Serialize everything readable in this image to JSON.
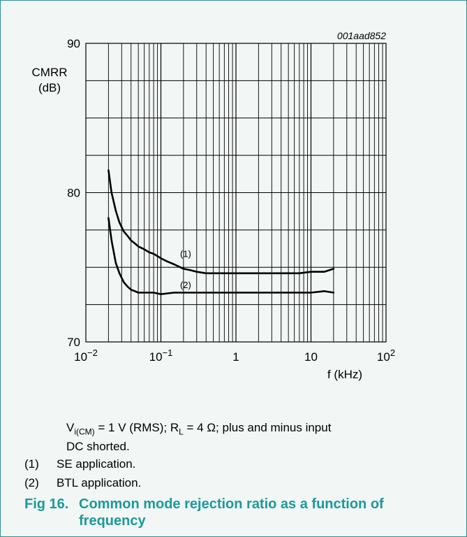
{
  "figure": {
    "id_label": "001aad852",
    "fig_number": "Fig 16.",
    "caption_line1": "Common mode rejection ratio as a function of",
    "caption_line2": "frequency"
  },
  "conditions": {
    "v_main": "V",
    "v_sub": "i(CM)",
    "v_rest": " = 1 V (RMS); R",
    "r_sub": "L",
    "r_rest": " = 4 Ω; plus and minus input",
    "line2": "DC shorted."
  },
  "legend_items": [
    {
      "num": "(1)",
      "text": "SE application."
    },
    {
      "num": "(2)",
      "text": "BTL application."
    }
  ],
  "colors": {
    "frame_border": "#2f8f8f",
    "frame_bg": "#f2f6f5",
    "caption": "#1b9a9a",
    "curve": "#000000",
    "grid": "#000000"
  },
  "chart_data": {
    "type": "line",
    "x_scale": "log",
    "xlim": [
      0.01,
      100
    ],
    "ylim": [
      70,
      90
    ],
    "ylabel_line1": "CMRR",
    "ylabel_line2": "(dB)",
    "xlabel": "f (kHz)",
    "y_ticks": [
      {
        "v": 70,
        "label": "70"
      },
      {
        "v": 80,
        "label": "80"
      },
      {
        "v": 90,
        "label": "90"
      }
    ],
    "x_ticks": [
      {
        "v": 0.01,
        "base": "10",
        "exp": "−2"
      },
      {
        "v": 0.1,
        "base": "10",
        "exp": "−1"
      },
      {
        "v": 1,
        "base": "1",
        "exp": ""
      },
      {
        "v": 10,
        "base": "10",
        "exp": ""
      },
      {
        "v": 100,
        "base": "10",
        "exp": "2"
      }
    ],
    "series": [
      {
        "name": "(1)",
        "x": [
          0.02,
          0.022,
          0.025,
          0.028,
          0.032,
          0.036,
          0.04,
          0.045,
          0.05,
          0.06,
          0.07,
          0.08,
          0.1,
          0.12,
          0.15,
          0.2,
          0.25,
          0.3,
          0.4,
          0.5,
          0.7,
          1,
          1.5,
          2,
          3,
          5,
          7,
          10,
          15,
          20
        ],
        "y": [
          81.5,
          80.0,
          78.8,
          78.0,
          77.4,
          77.1,
          76.8,
          76.6,
          76.4,
          76.2,
          76.0,
          75.9,
          75.6,
          75.4,
          75.2,
          74.9,
          74.8,
          74.7,
          74.6,
          74.6,
          74.6,
          74.6,
          74.6,
          74.6,
          74.6,
          74.6,
          74.6,
          74.7,
          74.7,
          74.9
        ]
      },
      {
        "name": "(2)",
        "x": [
          0.02,
          0.022,
          0.025,
          0.028,
          0.032,
          0.036,
          0.04,
          0.045,
          0.05,
          0.06,
          0.07,
          0.08,
          0.1,
          0.15,
          0.2,
          0.3,
          0.5,
          0.7,
          1,
          2,
          3,
          5,
          10,
          15,
          20
        ],
        "y": [
          78.3,
          76.8,
          75.3,
          74.6,
          74.0,
          73.7,
          73.5,
          73.4,
          73.3,
          73.3,
          73.3,
          73.3,
          73.2,
          73.3,
          73.3,
          73.3,
          73.3,
          73.3,
          73.3,
          73.3,
          73.3,
          73.3,
          73.3,
          73.4,
          73.3
        ]
      }
    ],
    "curve_labels": [
      {
        "text": "(1)",
        "x": 0.18,
        "y": 75.7
      },
      {
        "text": "(2)",
        "x": 0.18,
        "y": 73.6
      }
    ],
    "grid": true
  }
}
